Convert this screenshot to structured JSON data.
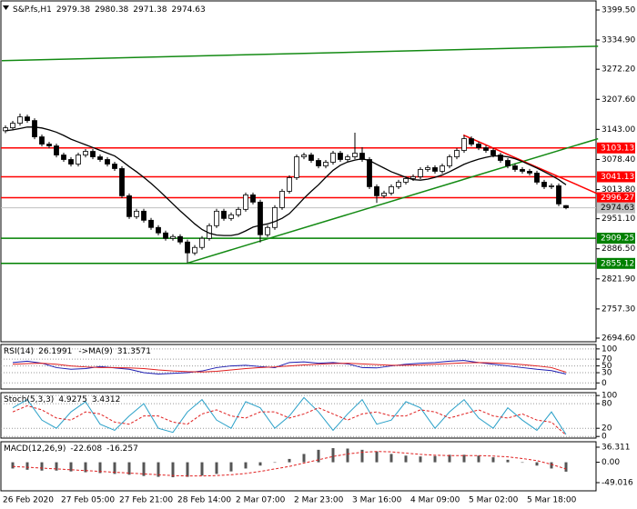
{
  "chart_data": [
    {
      "type": "candlestick",
      "title": "S&P.fs,H1",
      "grid": false,
      "categories": [
        "26 Feb 2020",
        null,
        null,
        null,
        null,
        null,
        null,
        null,
        "27 Feb 05:00",
        null,
        null,
        null,
        null,
        null,
        null,
        null,
        "27 Feb 21:00",
        null,
        null,
        null,
        null,
        null,
        null,
        null,
        "28 Feb 14:00",
        null,
        null,
        null,
        null,
        null,
        null,
        null,
        "2 Mar 07:00",
        null,
        null,
        null,
        null,
        null,
        null,
        null,
        "2 Mar 23:00",
        null,
        null,
        null,
        null,
        null,
        null,
        null,
        "3 Mar 16:00",
        null,
        null,
        null,
        null,
        null,
        null,
        null,
        "4 Mar 09:00",
        null,
        null,
        null,
        null,
        null,
        null,
        null,
        "5 Mar 02:00",
        null,
        null,
        null,
        null,
        null,
        null,
        null,
        "5 Mar 18:00",
        null,
        null,
        null,
        null,
        null
      ],
      "open": [
        3140,
        3146.4,
        3156.2,
        3169.8,
        3162,
        3127,
        3111.4,
        3107.5,
        3088,
        3078.3,
        3068.5,
        3088,
        3095.8,
        3084.1,
        3078.3,
        3068.5,
        3058.8,
        3000.4,
        2955.6,
        2967.3,
        2947.8,
        2932.3,
        2920.6,
        2908.9,
        2912.8,
        2901.1,
        2877.7,
        2889.4,
        2908.9,
        2936.1,
        2967.3,
        2951.7,
        2959.5,
        2971.2,
        3002.3,
        2986.8,
        2916.7,
        2932.3,
        2975.1,
        3010.1,
        3039.3,
        3084.1,
        3088,
        3076.3,
        3064.6,
        3072.4,
        3091.9,
        3078.3,
        3084.1,
        3091.9,
        3078.3,
        3019.9,
        3000.4,
        3006.2,
        3019.9,
        3029.6,
        3037.4,
        3041.3,
        3056.9,
        3060.8,
        3053,
        3064.6,
        3084.1,
        3097.8,
        3123.1,
        3111.4,
        3103.6,
        3097.8,
        3088,
        3076.3,
        3064.6,
        3056.9,
        3053,
        3049.1,
        3029.6,
        3019.9,
        3021.8,
        2979.38
      ],
      "high": [
        3151.4,
        3161.2,
        3176.8,
        3174.8,
        3167,
        3132,
        3116.4,
        3112.5,
        3093,
        3083.3,
        3093,
        3100.8,
        3100.8,
        3089.1,
        3083.3,
        3073.5,
        3063.8,
        3005.4,
        2972.3,
        2972.3,
        2952.8,
        2937.3,
        2925.6,
        2917.8,
        2917.8,
        2906.1,
        2894.4,
        2913.9,
        2941.1,
        2972.3,
        2972.3,
        2964.5,
        2976.2,
        3007.3,
        3007.3,
        2991.8,
        2937.3,
        2980.1,
        3015.1,
        3044.3,
        3089.1,
        3093,
        3093,
        3081.3,
        3077.4,
        3096.9,
        3096.9,
        3089.1,
        3136,
        3105,
        3083.3,
        3024.9,
        3011.2,
        3024.9,
        3034.6,
        3042.4,
        3046.3,
        3061.9,
        3065.8,
        3065.8,
        3069.6,
        3089.1,
        3102.8,
        3130,
        3128.1,
        3116.4,
        3108.6,
        3102.8,
        3093,
        3081.3,
        3069.6,
        3061.9,
        3058,
        3054.1,
        3034.6,
        3026.8,
        3026.8,
        2980.38
      ],
      "low": [
        3135,
        3141.4,
        3151.2,
        3157,
        3122,
        3106.4,
        3102.5,
        3083,
        3073.3,
        3063.5,
        3063.5,
        3083,
        3079.1,
        3073.3,
        3063.5,
        3053.8,
        2995.4,
        2950.6,
        2950.6,
        2942.8,
        2927.3,
        2915.6,
        2903.9,
        2903.9,
        2896.1,
        2856,
        2872.7,
        2884.4,
        2903.9,
        2931.1,
        2946.7,
        2946.7,
        2954.5,
        2966.2,
        2981.8,
        2900,
        2911.7,
        2927.3,
        2970.1,
        3005.1,
        3034.3,
        3079.1,
        3071.3,
        3059.6,
        3059.6,
        3067.4,
        3073.3,
        3073.3,
        3079.1,
        3073.3,
        3014.9,
        2985,
        2995.4,
        3001.2,
        3014.9,
        3024.6,
        3032.4,
        3036.3,
        3051.9,
        3048,
        3048,
        3059.6,
        3079.1,
        3092.8,
        3106.4,
        3098.6,
        3092.8,
        3083,
        3071.3,
        3059.6,
        3051.9,
        3048,
        3044.1,
        3024.6,
        3014.9,
        3014.9,
        2977.9,
        2971.38
      ],
      "close": [
        3146.4,
        3156.2,
        3169.8,
        3162,
        3127,
        3111.4,
        3107.5,
        3088,
        3078.3,
        3068.5,
        3088,
        3095.8,
        3084.1,
        3078.3,
        3068.5,
        3058.8,
        3000.4,
        2955.6,
        2967.3,
        2947.8,
        2932.3,
        2920.6,
        2908.9,
        2912.8,
        2901.1,
        2877.7,
        2889.4,
        2908.9,
        2936.1,
        2967.3,
        2951.7,
        2959.5,
        2971.2,
        3002.3,
        2986.8,
        2916.7,
        2932.3,
        2975.1,
        3010.1,
        3039.3,
        3084.1,
        3088,
        3076.3,
        3064.6,
        3072.4,
        3091.9,
        3078.3,
        3084.1,
        3091.9,
        3078.3,
        3019.9,
        3000.4,
        3006.2,
        3019.9,
        3029.6,
        3037.4,
        3041.3,
        3056.9,
        3060.8,
        3053,
        3064.6,
        3084.1,
        3097.8,
        3123.1,
        3111.4,
        3103.6,
        3097.8,
        3088,
        3076.3,
        3064.6,
        3056.9,
        3053,
        3049.1,
        3029.6,
        3019.9,
        3021.8,
        2982.9,
        2974.63
      ],
      "ma": {
        "color": "#000000",
        "values": [
          3140,
          3142,
          3145,
          3148,
          3148,
          3146,
          3142,
          3137,
          3130,
          3122,
          3116,
          3110,
          3104,
          3098,
          3092,
          3086,
          3075,
          3063,
          3052,
          3040,
          3027,
          3013,
          2998,
          2983,
          2968,
          2954,
          2940,
          2928,
          2920,
          2916,
          2915,
          2915,
          2918,
          2925,
          2933,
          2937,
          2940,
          2945,
          2952,
          2962,
          2978,
          2995,
          3010,
          3024,
          3040,
          3055,
          3066,
          3073,
          3077,
          3080,
          3076,
          3068,
          3060,
          3052,
          3046,
          3040,
          3035,
          3034,
          3036,
          3040,
          3045,
          3052,
          3060,
          3068,
          3074,
          3079,
          3083,
          3086,
          3086,
          3084,
          3080,
          3074,
          3067,
          3060,
          3052,
          3044,
          3035,
          3024
        ]
      },
      "levels": [
        {
          "value": 3103.13,
          "color": "#ff0000"
        },
        {
          "value": 3041.13,
          "color": "#ff0000"
        },
        {
          "value": 2996.27,
          "color": "#ff0000"
        },
        {
          "value": 2909.25,
          "color": "#008000"
        },
        {
          "value": 2855.12,
          "color": "#008000"
        }
      ],
      "trendlines": [
        {
          "x": [
            -0.5,
            81.4
          ],
          "y": [
            3290.5,
            3321.6
          ],
          "color": "#138a13"
        },
        {
          "x": [
            25.1,
            81.4
          ],
          "y": [
            2856.3,
            3123
          ],
          "color": "#138a13"
        },
        {
          "x": [
            62.9,
            81.4
          ],
          "y": [
            3130.8,
            3004.3
          ],
          "color": "#ff0000"
        }
      ],
      "ylim": [
        2686.8,
        3419
      ],
      "yticks": [
        {
          "value": 3399.5,
          "label": "3399.50"
        },
        {
          "value": 3334.9,
          "label": "3334.90"
        },
        {
          "value": 3272.2,
          "label": "3272.20"
        },
        {
          "value": 3207.6,
          "label": "3207.60"
        },
        {
          "value": 3143,
          "label": "3143.00"
        },
        {
          "value": 3078.4,
          "label": "3078.40"
        },
        {
          "value": 3013.8,
          "label": "3013.80"
        },
        {
          "value": 2951.1,
          "label": "2951.10"
        },
        {
          "value": 2886.5,
          "label": "2886.50"
        },
        {
          "value": 2821.9,
          "label": "2821.90"
        },
        {
          "value": 2757.3,
          "label": "2757.30"
        },
        {
          "value": 2694.6,
          "label": "2694.60"
        }
      ]
    },
    {
      "type": "line",
      "title": "RSI(14)",
      "grid": true,
      "ylim": [
        -18,
        113
      ],
      "yticks": [
        100,
        70,
        50,
        30,
        0
      ],
      "series": [
        {
          "color": "#1c1cb0",
          "style": "line",
          "values": [
            60,
            64,
            58,
            45,
            40,
            42,
            48,
            44,
            40,
            30,
            26,
            28,
            30,
            35,
            45,
            50,
            52,
            48,
            45,
            60,
            62,
            58,
            60,
            56,
            45,
            44,
            50,
            55,
            58,
            60,
            64,
            66,
            60,
            55,
            50,
            45,
            40,
            36,
            26.1991
          ]
        },
        {
          "name": "->MA(9)",
          "color": "#e02020",
          "style": "line",
          "values": [
            55,
            57,
            58,
            55,
            50,
            47,
            45,
            45,
            44,
            42,
            38,
            35,
            33,
            32,
            34,
            38,
            42,
            45,
            47,
            50,
            53,
            55,
            57,
            58,
            56,
            54,
            52,
            52,
            53,
            55,
            57,
            59,
            60,
            59,
            57,
            54,
            50,
            45,
            31.3571
          ]
        }
      ]
    },
    {
      "type": "line",
      "title": "Stoch(5,3,3)",
      "grid": true,
      "ylim": [
        -4,
        107
      ],
      "yticks": [
        100,
        80,
        20,
        0
      ],
      "series": [
        {
          "color": "#2aa0c8",
          "style": "line",
          "values": [
            70,
            90,
            40,
            20,
            60,
            85,
            30,
            15,
            50,
            80,
            20,
            10,
            60,
            90,
            40,
            20,
            85,
            70,
            20,
            50,
            95,
            60,
            15,
            55,
            90,
            30,
            40,
            85,
            70,
            20,
            60,
            90,
            45,
            20,
            70,
            40,
            15,
            60,
            4.9275
          ]
        },
        {
          "color": "#e02020",
          "style": "dash",
          "values": [
            60,
            75,
            65,
            45,
            40,
            60,
            55,
            35,
            30,
            50,
            50,
            35,
            30,
            55,
            65,
            50,
            45,
            60,
            60,
            45,
            55,
            70,
            55,
            40,
            55,
            60,
            50,
            50,
            65,
            60,
            45,
            55,
            65,
            50,
            45,
            55,
            40,
            35,
            3.4312
          ]
        }
      ]
    },
    {
      "type": "line",
      "title": "MACD(12,26,9)",
      "grid": false,
      "ylim": [
        -68.7,
        49.4
      ],
      "yticks": [
        36.311,
        {
          "value": 0,
          "label": "0.00"
        },
        -49.016
      ],
      "series": [
        {
          "color": "#555555",
          "style": "bar",
          "values": [
            -15,
            -18,
            -20,
            -20,
            -22,
            -24,
            -26,
            -28,
            -30,
            -33,
            -35,
            -36,
            -35,
            -32,
            -28,
            -22,
            -15,
            -8,
            0,
            8,
            20,
            30,
            34,
            33,
            30,
            26,
            20,
            16,
            14,
            15,
            18,
            18,
            16,
            12,
            6,
            0,
            -8,
            -15,
            -22.608
          ]
        },
        {
          "color": "#e02020",
          "style": "dash",
          "values": [
            -10,
            -12,
            -14,
            -16,
            -18,
            -20,
            -22,
            -24,
            -26,
            -28,
            -30,
            -32,
            -33,
            -33,
            -32,
            -30,
            -27,
            -22,
            -16,
            -10,
            -2,
            6,
            14,
            20,
            24,
            26,
            25,
            22,
            19,
            17,
            16,
            16,
            16,
            15,
            13,
            9,
            4,
            -5,
            -16.257
          ]
        }
      ]
    }
  ]
}
